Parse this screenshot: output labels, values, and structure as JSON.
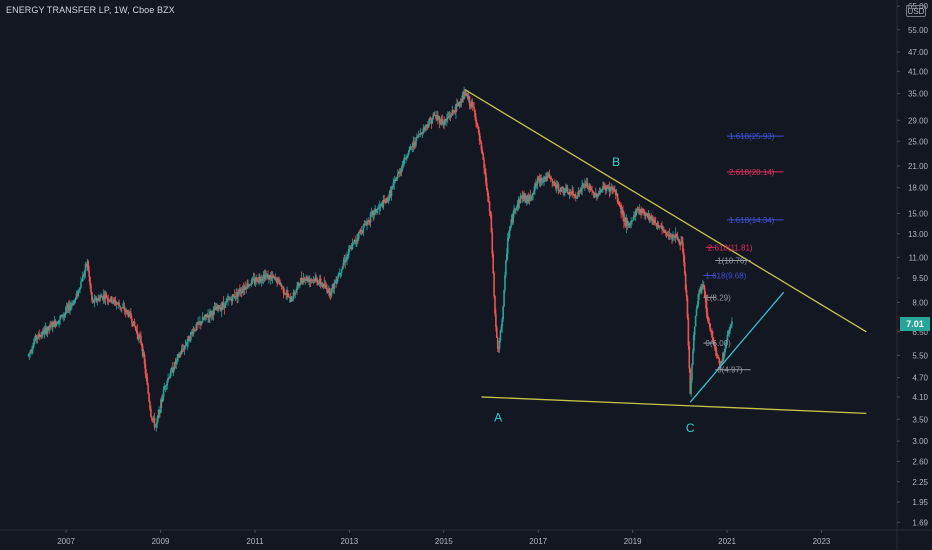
{
  "header": {
    "symbol_name": "ENERGY TRANSFER LP",
    "interval": "1W",
    "exchange": "Cboe BZX",
    "currency": "USD",
    "last_price": "7.01"
  },
  "colors": {
    "background": "#131722",
    "up": "#26a69a",
    "down": "#ef5350",
    "trendline": "#c9c24a",
    "support_line": "#2fc1d3",
    "fib_blue": "#3f51d6",
    "fib_red": "#e0305a",
    "fib_gray": "#9598a1",
    "wave_label": "#2fd0d0",
    "price_badge": "#26a69a"
  },
  "chart_data": {
    "type": "candlestick",
    "y_scale": "log",
    "ylim": [
      1.6,
      66
    ],
    "xlim": [
      2005.6,
      2024.6
    ],
    "y_ticks": [
      "65.00",
      "55.00",
      "47.00",
      "41.00",
      "35.00",
      "29.00",
      "25.00",
      "21.00",
      "18.00",
      "15.00",
      "13.00",
      "11.00",
      "9.50",
      "8.00",
      "6.50",
      "5.50",
      "4.70",
      "4.10",
      "3.50",
      "3.00",
      "2.60",
      "2.25",
      "1.95",
      "1.69"
    ],
    "x_ticks": [
      {
        "x": 2007,
        "label": "2007"
      },
      {
        "x": 2009,
        "label": "2009"
      },
      {
        "x": 2011,
        "label": "2011"
      },
      {
        "x": 2013,
        "label": "2013"
      },
      {
        "x": 2015,
        "label": "2015"
      },
      {
        "x": 2017,
        "label": "2017"
      },
      {
        "x": 2019,
        "label": "2019"
      },
      {
        "x": 2021,
        "label": "2021"
      },
      {
        "x": 2023,
        "label": "2023"
      }
    ],
    "price_path": [
      [
        2006.2,
        5.5
      ],
      [
        2006.35,
        6.2
      ],
      [
        2006.6,
        6.6
      ],
      [
        2006.9,
        7.2
      ],
      [
        2007.2,
        8.2
      ],
      [
        2007.45,
        10.6
      ],
      [
        2007.55,
        8.0
      ],
      [
        2007.8,
        8.4
      ],
      [
        2008.1,
        7.9
      ],
      [
        2008.35,
        7.3
      ],
      [
        2008.6,
        6.0
      ],
      [
        2008.8,
        3.6
      ],
      [
        2008.9,
        3.3
      ],
      [
        2009.1,
        4.5
      ],
      [
        2009.4,
        5.5
      ],
      [
        2009.7,
        6.6
      ],
      [
        2010.0,
        7.3
      ],
      [
        2010.4,
        8.0
      ],
      [
        2010.8,
        9.0
      ],
      [
        2011.2,
        9.7
      ],
      [
        2011.5,
        9.3
      ],
      [
        2011.75,
        8.1
      ],
      [
        2012.0,
        9.5
      ],
      [
        2012.3,
        9.4
      ],
      [
        2012.6,
        8.6
      ],
      [
        2012.9,
        10.8
      ],
      [
        2013.2,
        13.0
      ],
      [
        2013.5,
        15.0
      ],
      [
        2013.8,
        16.5
      ],
      [
        2014.2,
        22.5
      ],
      [
        2014.5,
        26.5
      ],
      [
        2014.8,
        30.0
      ],
      [
        2015.0,
        28.5
      ],
      [
        2015.25,
        31.5
      ],
      [
        2015.45,
        35.0
      ],
      [
        2015.65,
        31.0
      ],
      [
        2015.85,
        21.0
      ],
      [
        2016.0,
        14.0
      ],
      [
        2016.08,
        7.5
      ],
      [
        2016.15,
        5.5
      ],
      [
        2016.25,
        7.5
      ],
      [
        2016.35,
        12.5
      ],
      [
        2016.5,
        15.5
      ],
      [
        2016.65,
        17.0
      ],
      [
        2016.8,
        16.5
      ],
      [
        2017.0,
        19.0
      ],
      [
        2017.2,
        19.5
      ],
      [
        2017.4,
        18.0
      ],
      [
        2017.6,
        17.5
      ],
      [
        2017.8,
        17.0
      ],
      [
        2018.0,
        18.5
      ],
      [
        2018.2,
        17.0
      ],
      [
        2018.4,
        18.0
      ],
      [
        2018.6,
        17.8
      ],
      [
        2018.75,
        15.5
      ],
      [
        2018.9,
        13.5
      ],
      [
        2019.1,
        15.5
      ],
      [
        2019.3,
        15.0
      ],
      [
        2019.5,
        14.0
      ],
      [
        2019.7,
        13.0
      ],
      [
        2019.9,
        12.8
      ],
      [
        2020.05,
        12.0
      ],
      [
        2020.15,
        8.0
      ],
      [
        2020.22,
        4.1
      ],
      [
        2020.3,
        6.5
      ],
      [
        2020.4,
        8.6
      ],
      [
        2020.5,
        9.0
      ],
      [
        2020.6,
        7.0
      ],
      [
        2020.75,
        5.8
      ],
      [
        2020.85,
        5.1
      ],
      [
        2020.95,
        5.7
      ],
      [
        2021.05,
        6.7
      ],
      [
        2021.12,
        7.01
      ]
    ],
    "wave_labels": [
      {
        "label": "A",
        "x": 2016.15,
        "y": 3.45
      },
      {
        "label": "B",
        "x": 2018.65,
        "y": 21.0
      },
      {
        "label": "C",
        "x": 2020.22,
        "y": 3.2
      }
    ],
    "trendlines": [
      {
        "name": "upper-resistance",
        "from": [
          2015.45,
          36.0
        ],
        "to": [
          2023.95,
          6.5
        ]
      },
      {
        "name": "lower-support",
        "from": [
          2015.8,
          4.1
        ],
        "to": [
          2023.95,
          3.65
        ]
      },
      {
        "name": "rising-support",
        "from": [
          2020.22,
          3.95
        ],
        "to": [
          2022.2,
          8.6
        ]
      }
    ],
    "fib_levels": [
      {
        "label": "1.618(25.93)",
        "value": 25.93,
        "x_from": 2021.0,
        "x_to": 2022.2,
        "color": "blue"
      },
      {
        "label": "2.618(20.14)",
        "value": 20.14,
        "x_from": 2021.0,
        "x_to": 2022.2,
        "color": "red"
      },
      {
        "label": "1.618(14.34)",
        "value": 14.34,
        "x_from": 2021.0,
        "x_to": 2022.2,
        "color": "blue"
      },
      {
        "label": "2.618(11.81)",
        "value": 11.81,
        "x_from": 2020.55,
        "x_to": 2020.75,
        "color": "red"
      },
      {
        "label": "1(10.76)",
        "value": 10.76,
        "x_from": 2020.75,
        "x_to": 2021.5,
        "color": "gray"
      },
      {
        "label": "1.618(9.68)",
        "value": 9.68,
        "x_from": 2020.5,
        "x_to": 2020.75,
        "color": "blue"
      },
      {
        "label": "1(8.29)",
        "value": 8.29,
        "x_from": 2020.5,
        "x_to": 2020.75,
        "color": "gray"
      },
      {
        "label": "0(6.00)",
        "value": 6.0,
        "x_from": 2020.5,
        "x_to": 2020.75,
        "color": "gray"
      },
      {
        "label": "0(4.97)",
        "value": 4.97,
        "x_from": 2020.75,
        "x_to": 2021.5,
        "color": "gray"
      }
    ]
  }
}
